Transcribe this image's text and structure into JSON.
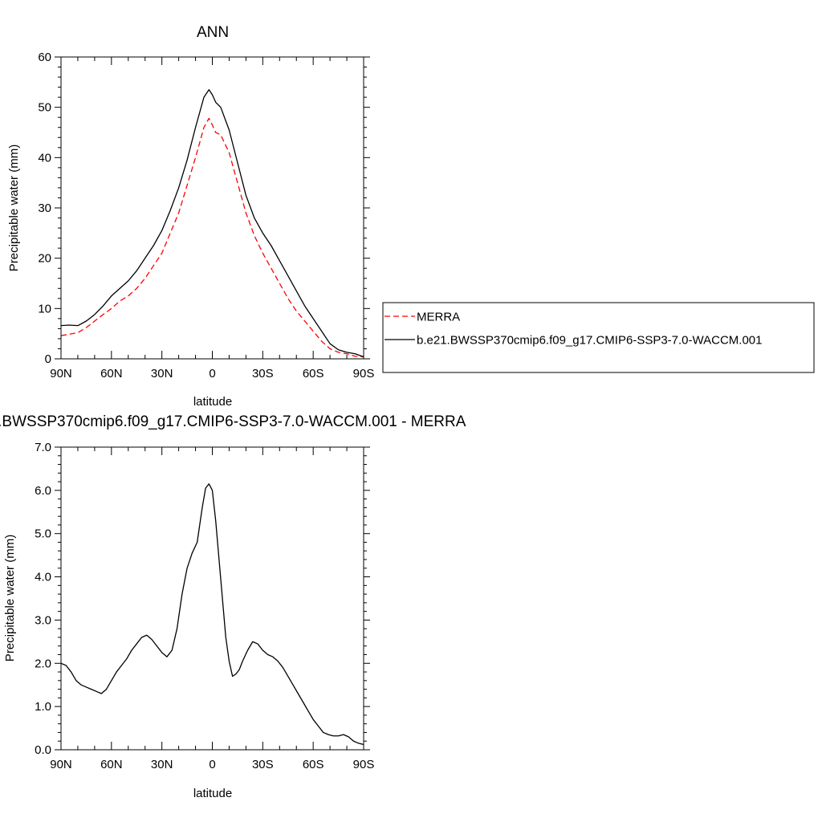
{
  "chart_data": [
    {
      "type": "line",
      "title": "ANN",
      "xlabel": "latitude",
      "ylabel": "Precipitable water (mm)",
      "xlim": [
        90,
        -90
      ],
      "ylim": [
        0,
        60
      ],
      "x_ticks": [
        90,
        60,
        30,
        0,
        -30,
        -60,
        -90
      ],
      "x_tick_labels": [
        "90N",
        "60N",
        "30N",
        "0",
        "30S",
        "60S",
        "90S"
      ],
      "y_ticks": [
        0,
        10,
        20,
        30,
        40,
        50,
        60
      ],
      "y_tick_labels": [
        "0",
        "10",
        "20",
        "30",
        "40",
        "50",
        "60"
      ],
      "grid": false,
      "legend_position": "right",
      "series": [
        {
          "name": "MERRA",
          "color": "#ff0000",
          "dash": "dashed",
          "x": [
            90,
            85,
            80,
            75,
            70,
            65,
            60,
            55,
            50,
            45,
            40,
            35,
            30,
            25,
            20,
            15,
            10,
            5,
            2,
            0,
            -2,
            -5,
            -10,
            -15,
            -20,
            -25,
            -30,
            -35,
            -40,
            -45,
            -50,
            -55,
            -60,
            -65,
            -70,
            -75,
            -80,
            -85,
            -90
          ],
          "values": [
            4.6,
            4.9,
            5.2,
            6.2,
            7.5,
            8.8,
            10.0,
            11.5,
            12.5,
            14.0,
            16.0,
            18.5,
            21.0,
            25.0,
            29.0,
            34.5,
            40.0,
            46.0,
            47.8,
            46.5,
            45.0,
            44.5,
            41.0,
            35.0,
            29.0,
            24.5,
            21.0,
            18.0,
            15.0,
            12.0,
            9.5,
            7.5,
            5.5,
            3.5,
            2.0,
            1.3,
            1.0,
            0.5,
            0.4
          ]
        },
        {
          "name": "b.e21.BWSSP370cmip6.f09_g17.CMIP6-SSP3-7.0-WACCM.001",
          "color": "#000000",
          "dash": "solid",
          "x": [
            90,
            85,
            80,
            75,
            70,
            65,
            60,
            55,
            50,
            45,
            40,
            35,
            30,
            25,
            20,
            15,
            10,
            5,
            2,
            0,
            -2,
            -5,
            -10,
            -15,
            -20,
            -25,
            -30,
            -35,
            -40,
            -45,
            -50,
            -55,
            -60,
            -65,
            -70,
            -75,
            -80,
            -85,
            -90
          ],
          "values": [
            6.6,
            6.7,
            6.6,
            7.5,
            8.8,
            10.5,
            12.5,
            14.0,
            15.5,
            17.5,
            20.0,
            22.5,
            25.5,
            29.5,
            34.0,
            39.5,
            46.0,
            52.0,
            53.5,
            52.5,
            51.0,
            50.0,
            45.5,
            39.0,
            32.5,
            28.0,
            25.0,
            22.5,
            19.5,
            16.5,
            13.5,
            10.5,
            8.0,
            5.5,
            3.0,
            1.8,
            1.3,
            1.0,
            0.4
          ]
        }
      ]
    },
    {
      "type": "line",
      "title": "b.e21.BWSSP370cmip6.f09_g17.CMIP6-SSP3-7.0-WACCM.001 - MERRA",
      "xlabel": "latitude",
      "ylabel": "Precipitable water (mm)",
      "xlim": [
        90,
        -90
      ],
      "ylim": [
        0,
        7
      ],
      "x_ticks": [
        90,
        60,
        30,
        0,
        -30,
        -60,
        -90
      ],
      "x_tick_labels": [
        "90N",
        "60N",
        "30N",
        "0",
        "30S",
        "60S",
        "90S"
      ],
      "y_ticks": [
        0,
        1,
        2,
        3,
        4,
        5,
        6,
        7
      ],
      "y_tick_labels": [
        "0.0",
        "1.0",
        "2.0",
        "3.0",
        "4.0",
        "5.0",
        "6.0",
        "7.0"
      ],
      "grid": false,
      "series": [
        {
          "color": "#000000",
          "dash": "solid",
          "x": [
            90,
            87,
            84,
            81,
            78,
            75,
            72,
            69,
            66,
            63,
            60,
            57,
            54,
            51,
            48,
            45,
            42,
            39,
            36,
            33,
            30,
            27,
            24,
            21,
            18,
            15,
            12,
            9,
            6,
            4,
            2,
            0,
            -2,
            -4,
            -6,
            -8,
            -10,
            -12,
            -14,
            -16,
            -18,
            -21,
            -24,
            -27,
            -30,
            -33,
            -36,
            -39,
            -42,
            -45,
            -48,
            -51,
            -54,
            -57,
            -60,
            -63,
            -66,
            -69,
            -72,
            -75,
            -78,
            -81,
            -84,
            -87,
            -90
          ],
          "values": [
            2.0,
            1.95,
            1.8,
            1.6,
            1.5,
            1.45,
            1.4,
            1.35,
            1.3,
            1.4,
            1.6,
            1.8,
            1.95,
            2.1,
            2.3,
            2.45,
            2.6,
            2.65,
            2.55,
            2.4,
            2.25,
            2.15,
            2.3,
            2.8,
            3.6,
            4.2,
            4.55,
            4.8,
            5.6,
            6.05,
            6.15,
            6.0,
            5.3,
            4.4,
            3.5,
            2.6,
            2.05,
            1.7,
            1.75,
            1.85,
            2.05,
            2.3,
            2.5,
            2.45,
            2.3,
            2.2,
            2.15,
            2.05,
            1.9,
            1.7,
            1.5,
            1.3,
            1.1,
            0.9,
            0.7,
            0.55,
            0.4,
            0.35,
            0.32,
            0.32,
            0.35,
            0.3,
            0.2,
            0.15,
            0.12
          ]
        }
      ]
    }
  ]
}
